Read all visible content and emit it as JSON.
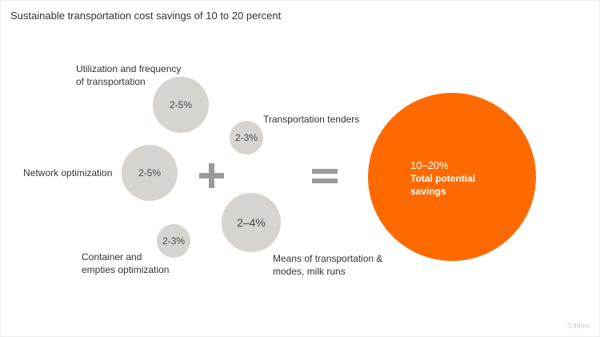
{
  "title": "Sustainable transportation cost savings of 10 to 20 percent",
  "factors": [
    {
      "label_lines": [
        "Utilization and frequency",
        "of transportation"
      ],
      "value": "2-5%"
    },
    {
      "label_lines": [
        "Transportation tenders"
      ],
      "value": "2-3%"
    },
    {
      "label_lines": [
        "Network optimization"
      ],
      "value": "2-5%"
    },
    {
      "label_lines": [
        "Means of transportation &",
        "modes, milk runs"
      ],
      "value": "2–4%"
    },
    {
      "label_lines": [
        "Container and",
        "empties optimization"
      ],
      "value": "2-3%"
    }
  ],
  "result": {
    "value": "10–20%",
    "label_lines": [
      "Total potential",
      "savings"
    ]
  },
  "watermark": "©4flow",
  "colors": {
    "bubble": "#d7d3cf",
    "result": "#ff6a00",
    "operator": "#9a9a9a"
  },
  "icons": [
    "plus-icon",
    "equals-icon"
  ]
}
